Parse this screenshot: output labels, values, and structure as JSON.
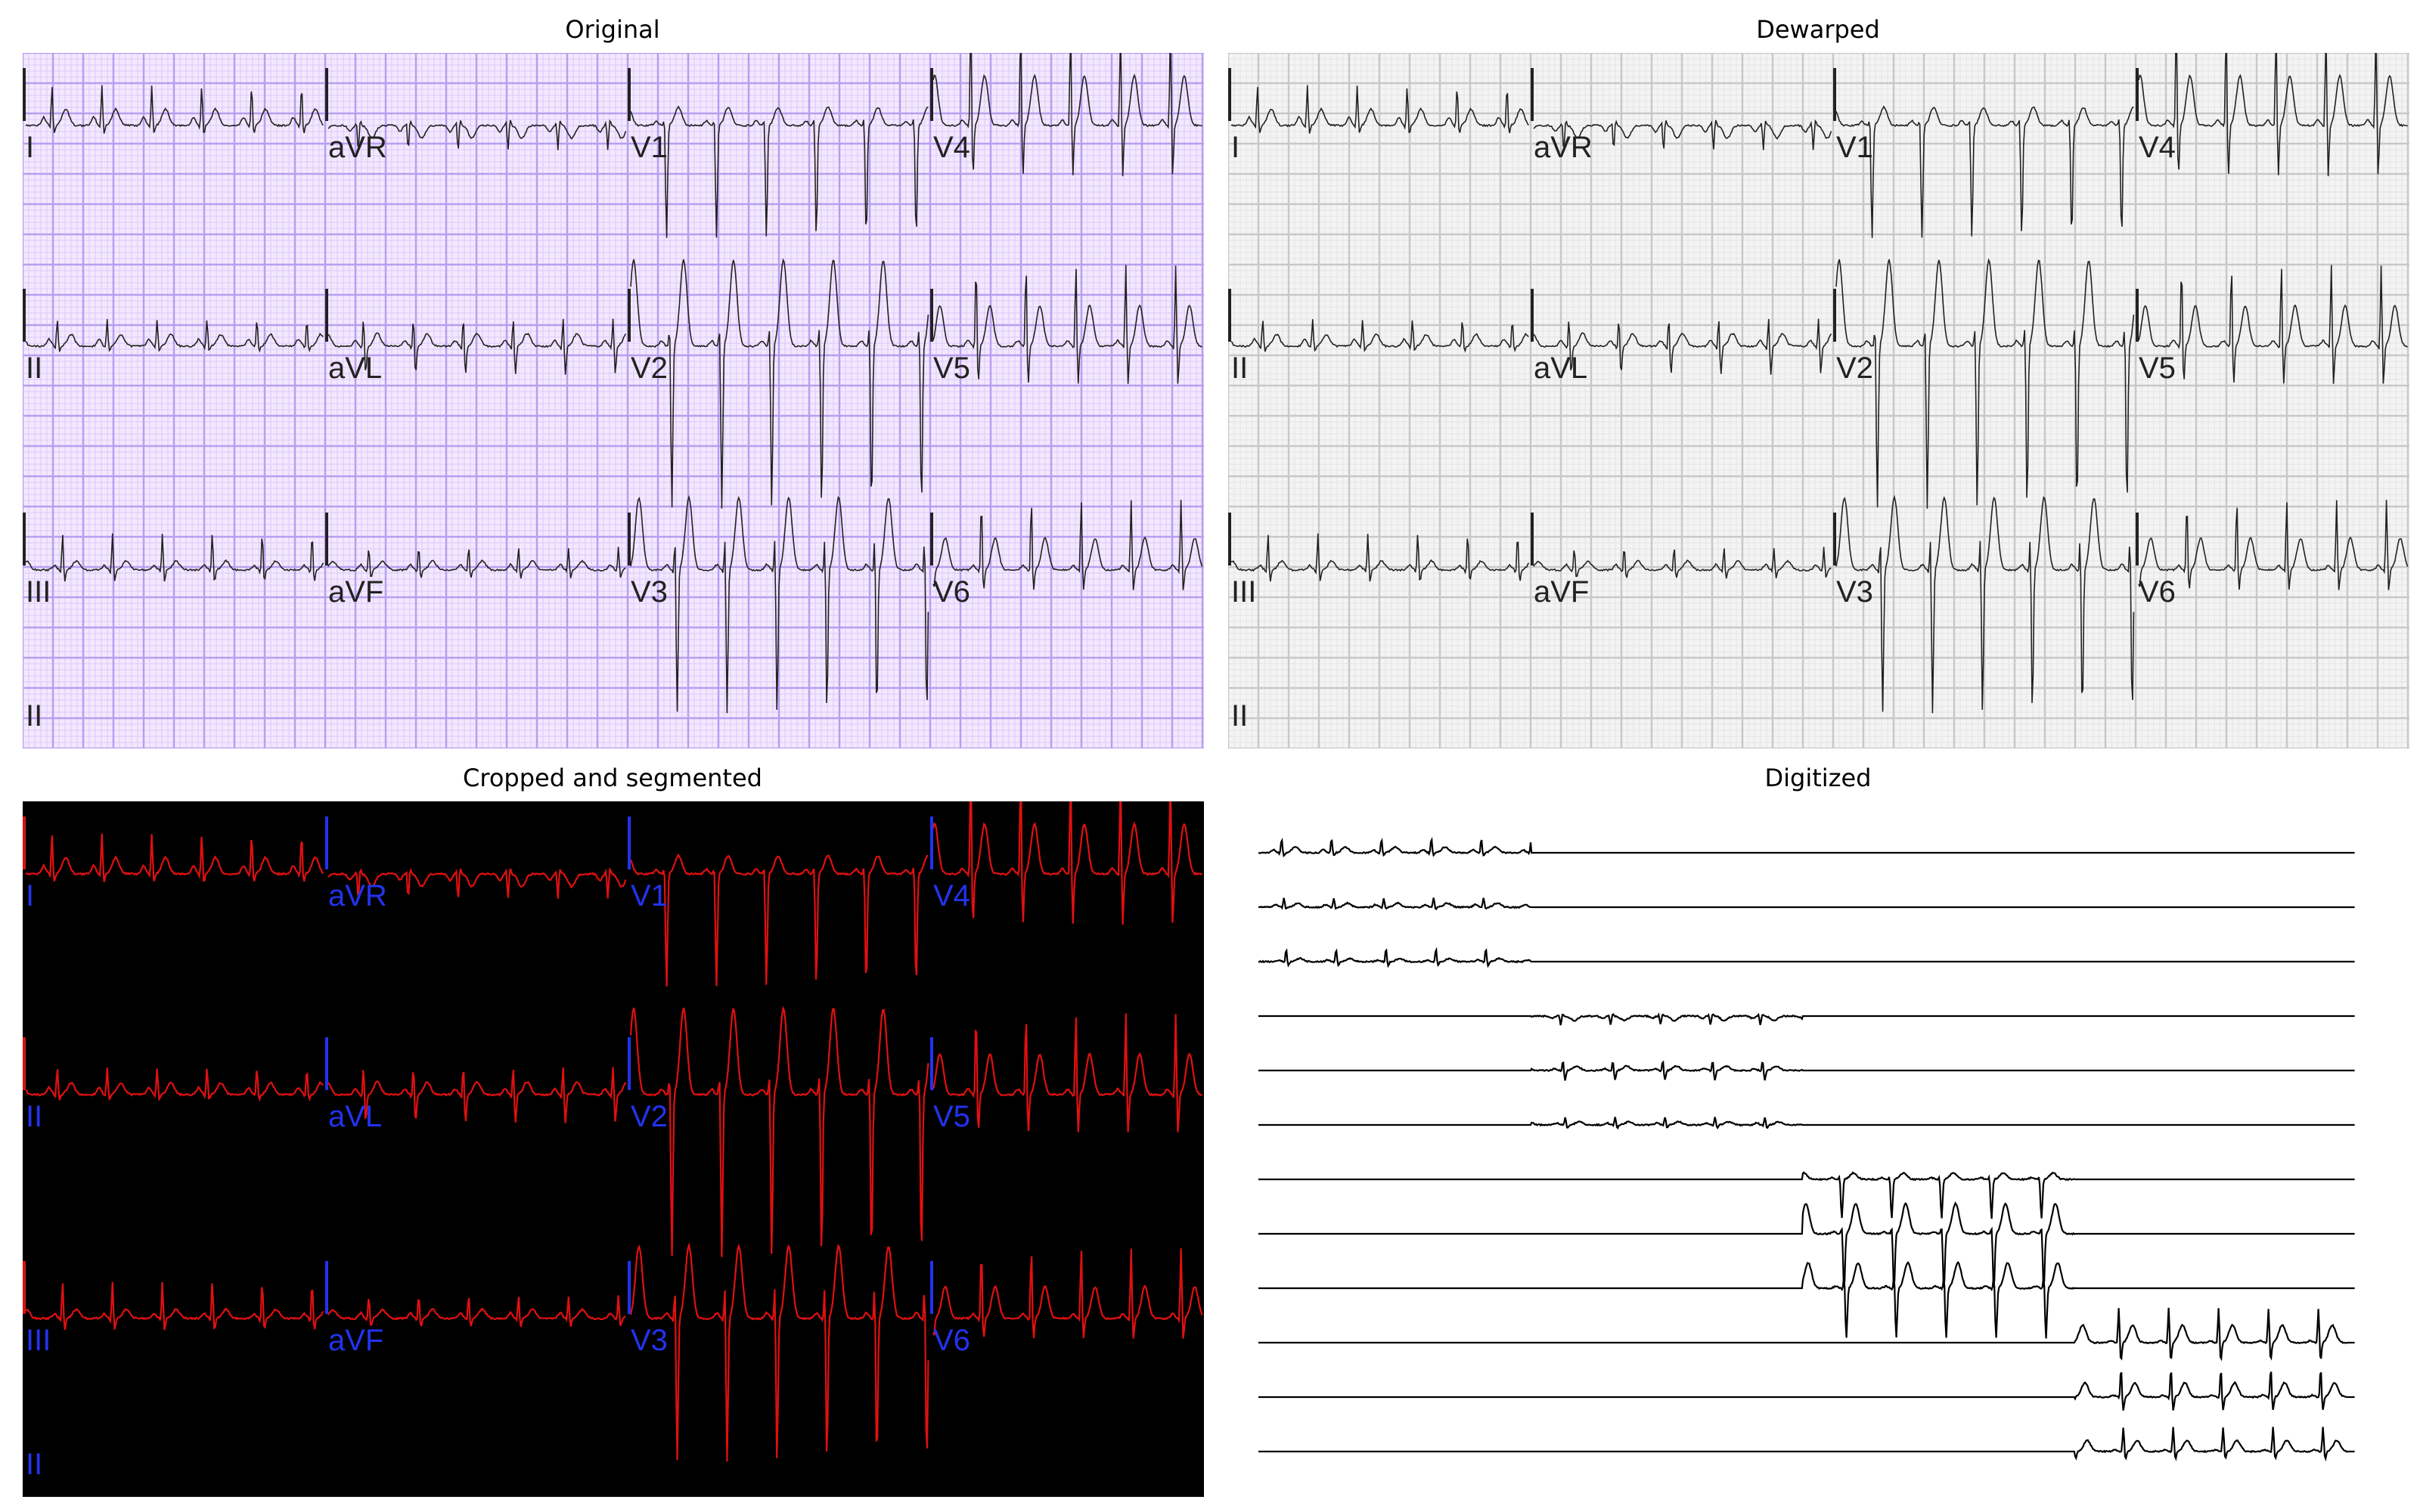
{
  "panels": {
    "original": {
      "title": "Original"
    },
    "dewarped": {
      "title": "Dewarped"
    },
    "segmented": {
      "title": "Cropped and segmented"
    },
    "digitized": {
      "title": "Digitized"
    }
  },
  "leads": {
    "row1": [
      "I",
      "aVR",
      "V1",
      "V4"
    ],
    "row2": [
      "II",
      "aVL",
      "V2",
      "V5"
    ],
    "row3": [
      "III",
      "aVF",
      "V3",
      "V6"
    ],
    "rhythm": "II"
  },
  "colors": {
    "original_bg": "#f3e9ff",
    "original_minor": "#ddc8f7",
    "original_major": "#b89ef0",
    "dewarped_bg": "#f4f4f4",
    "dewarped_minor": "#e3e3e3",
    "dewarped_major": "#c8c8c8",
    "trace": "#222222",
    "segmented_bg": "#000000",
    "segmented_trace": "#e01010",
    "segmented_label": "#2233ee",
    "digitized_trace": "#000000"
  }
}
